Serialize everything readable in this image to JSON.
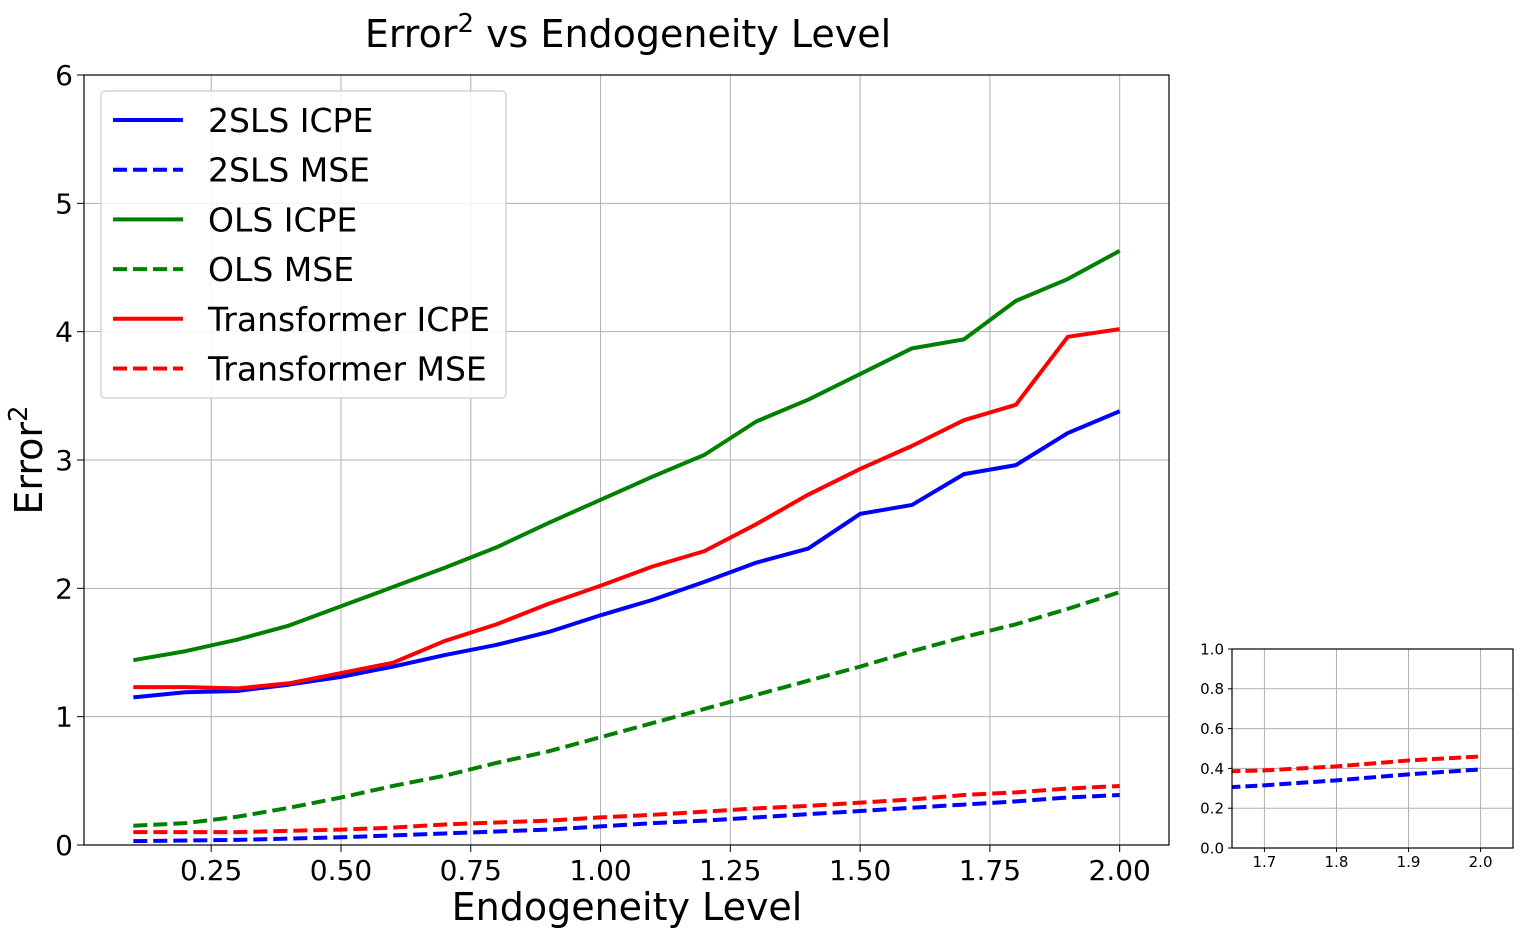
{
  "chart_data": [
    {
      "type": "line",
      "title": "Error",
      "title_superscript": "2",
      "title_rest": " vs Endogeneity Level",
      "xlabel": "Endogeneity Level",
      "ylabel": "Error",
      "ylabel_superscript": "2",
      "xlim": [
        0.005,
        2.095
      ],
      "ylim": [
        0,
        6
      ],
      "xticks": [
        0.25,
        0.5,
        0.75,
        1.0,
        1.25,
        1.5,
        1.75,
        2.0
      ],
      "xtick_labels": [
        "0.25",
        "0.50",
        "0.75",
        "1.00",
        "1.25",
        "1.50",
        "1.75",
        "2.00"
      ],
      "yticks": [
        0,
        1,
        2,
        3,
        4,
        5,
        6
      ],
      "ytick_labels": [
        "0",
        "1",
        "2",
        "3",
        "4",
        "5",
        "6"
      ],
      "grid": true,
      "legend_position": "top-left",
      "x": [
        0.1,
        0.2,
        0.3,
        0.4,
        0.5,
        0.6,
        0.7,
        0.8,
        0.9,
        1.0,
        1.1,
        1.2,
        1.3,
        1.4,
        1.5,
        1.6,
        1.7,
        1.8,
        1.9,
        2.0
      ],
      "series": [
        {
          "name": "2SLS ICPE",
          "color": "#0000ff",
          "style": "solid",
          "values": [
            1.15,
            1.19,
            1.2,
            1.25,
            1.31,
            1.39,
            1.48,
            1.56,
            1.66,
            1.79,
            1.91,
            2.05,
            2.2,
            2.31,
            2.58,
            2.65,
            2.89,
            2.96,
            3.21,
            3.38
          ]
        },
        {
          "name": "2SLS MSE",
          "color": "#0000ff",
          "style": "dashed",
          "values": [
            0.03,
            0.035,
            0.04,
            0.05,
            0.06,
            0.075,
            0.09,
            0.105,
            0.12,
            0.145,
            0.17,
            0.19,
            0.215,
            0.24,
            0.265,
            0.29,
            0.315,
            0.34,
            0.37,
            0.39
          ]
        },
        {
          "name": "OLS ICPE",
          "color": "#008000",
          "style": "solid",
          "values": [
            1.44,
            1.51,
            1.6,
            1.71,
            1.86,
            2.01,
            2.16,
            2.32,
            2.51,
            2.69,
            2.87,
            3.04,
            3.3,
            3.47,
            3.67,
            3.87,
            3.94,
            4.24,
            4.41,
            4.63
          ]
        },
        {
          "name": "OLS MSE",
          "color": "#008000",
          "style": "dashed",
          "values": [
            0.15,
            0.17,
            0.22,
            0.29,
            0.37,
            0.46,
            0.54,
            0.64,
            0.73,
            0.84,
            0.95,
            1.06,
            1.17,
            1.28,
            1.39,
            1.51,
            1.62,
            1.72,
            1.84,
            1.97
          ]
        },
        {
          "name": "Transformer ICPE",
          "color": "#ff0000",
          "style": "solid",
          "values": [
            1.23,
            1.23,
            1.22,
            1.26,
            1.34,
            1.42,
            1.59,
            1.72,
            1.88,
            2.02,
            2.17,
            2.29,
            2.5,
            2.73,
            2.93,
            3.11,
            3.31,
            3.43,
            3.96,
            4.02
          ]
        },
        {
          "name": "Transformer MSE",
          "color": "#ff0000",
          "style": "dashed",
          "values": [
            0.1,
            0.1,
            0.1,
            0.11,
            0.12,
            0.135,
            0.16,
            0.175,
            0.19,
            0.215,
            0.235,
            0.26,
            0.285,
            0.305,
            0.33,
            0.355,
            0.39,
            0.41,
            0.44,
            0.46
          ]
        }
      ]
    },
    {
      "type": "line",
      "title": "",
      "xlabel": "",
      "ylabel": "",
      "xlim": [
        1.655,
        2.045
      ],
      "ylim": [
        0,
        1
      ],
      "xticks": [
        1.7,
        1.8,
        1.9,
        2.0
      ],
      "xtick_labels": [
        "1.7",
        "1.8",
        "1.9",
        "2.0"
      ],
      "yticks": [
        0,
        0.2,
        0.4,
        0.6,
        0.8,
        1.0
      ],
      "ytick_labels": [
        "0.0",
        "0.2",
        "0.4",
        "0.6",
        "0.8",
        "1.0"
      ],
      "grid": true,
      "x": [
        1.65,
        1.7,
        1.8,
        1.9,
        2.0
      ],
      "series": [
        {
          "color": "#0000ff",
          "style": "dashed",
          "values": [
            0.305,
            0.315,
            0.34,
            0.37,
            0.395
          ]
        },
        {
          "color": "#ff0000",
          "style": "dashed",
          "values": [
            0.385,
            0.39,
            0.41,
            0.44,
            0.46
          ]
        }
      ]
    }
  ]
}
